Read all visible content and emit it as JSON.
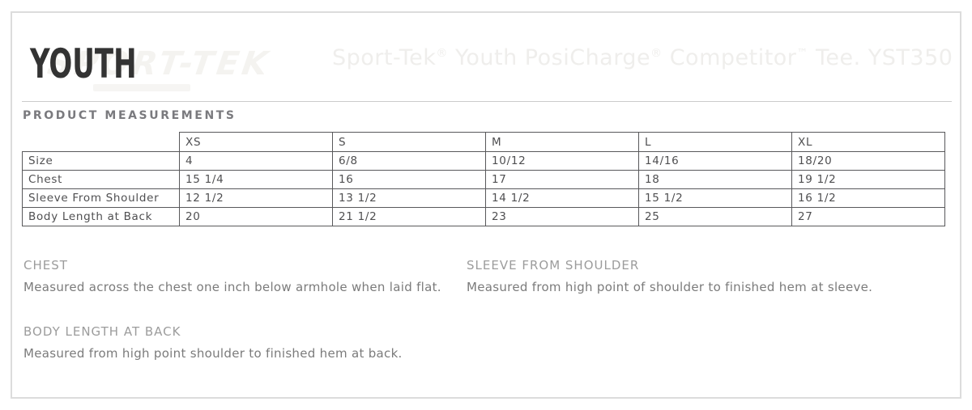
{
  "header": {
    "category_label": "YOUTH",
    "watermark_brand": "SPORT-TEK",
    "product_title": "Sport-Tek® Youth PosiCharge® Competitor™ Tee. YST350"
  },
  "section": {
    "title": "PRODUCT MEASUREMENTS"
  },
  "table": {
    "size_headers": [
      "XS",
      "S",
      "M",
      "L",
      "XL"
    ],
    "rows": [
      {
        "label": "Size",
        "values": [
          "4",
          "6/8",
          "10/12",
          "14/16",
          "18/20"
        ]
      },
      {
        "label": "Chest",
        "values": [
          "15 1/4",
          "16",
          "17",
          "18",
          "19 1/2"
        ]
      },
      {
        "label": "Sleeve From Shoulder",
        "values": [
          "12 1/2",
          "13 1/2",
          "14 1/2",
          "15 1/2",
          "16 1/2"
        ]
      },
      {
        "label": "Body Length at Back",
        "values": [
          "20",
          "21 1/2",
          "23",
          "25",
          "27"
        ]
      }
    ]
  },
  "notes": [
    {
      "title": "CHEST",
      "description": "Measured across the chest one inch below armhole when laid flat."
    },
    {
      "title": "SLEEVE FROM SHOULDER",
      "description": "Measured from high point of shoulder to finished hem at sleeve."
    },
    {
      "title": "BODY LENGTH AT BACK",
      "description": "Measured from high point shoulder to finished hem at back."
    }
  ],
  "colors": {
    "frame_border": "#dcdcdc",
    "divider": "#cccccc",
    "category_text": "#333333",
    "watermark": "#f4f3f0",
    "faded_title": "#efeeec",
    "heading_text": "#7a7a7e",
    "table_border": "#59595b",
    "body_text": "#4f4f51",
    "note_title": "#9c9c9c",
    "note_text": "#7b7b7b"
  }
}
